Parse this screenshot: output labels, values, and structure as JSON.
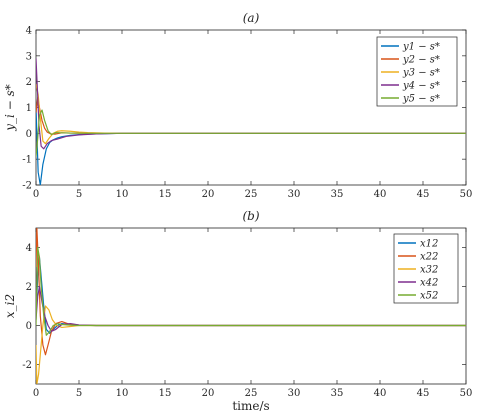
{
  "chart_data": [
    {
      "type": "line",
      "title": "(a)",
      "xlabel": "",
      "ylabel": "y_i − s*",
      "xlim": [
        0,
        50
      ],
      "ylim": [
        -2,
        4
      ],
      "xticks": [
        "0",
        "5",
        "10",
        "15",
        "20",
        "25",
        "30",
        "35",
        "40",
        "45",
        "50"
      ],
      "yticks": [
        "-2",
        "-1",
        "0",
        "1",
        "2",
        "3",
        "4"
      ],
      "grid": false,
      "legend_position": "top-right",
      "series": [
        {
          "name": "y1 − s*",
          "color": "#0072BD",
          "x": [
            0,
            0.25,
            0.5,
            0.8,
            1.2,
            1.6,
            2,
            2.5,
            3,
            4,
            5,
            6,
            8,
            10,
            50
          ],
          "y": [
            1.0,
            -1.5,
            -2.0,
            -1.2,
            -0.6,
            -0.35,
            -0.25,
            -0.18,
            -0.13,
            -0.08,
            -0.05,
            -0.03,
            -0.01,
            0,
            0
          ]
        },
        {
          "name": "y2 − s*",
          "color": "#D95319",
          "x": [
            0,
            0.2,
            0.4,
            0.7,
            1,
            1.3,
            1.7,
            2.2,
            3,
            4,
            5,
            7,
            10,
            50
          ],
          "y": [
            0.8,
            1.4,
            1.0,
            0.5,
            0.2,
            0.05,
            -0.02,
            -0.03,
            0.02,
            0.01,
            0.005,
            0,
            0,
            0
          ]
        },
        {
          "name": "y3 − s*",
          "color": "#EDB120",
          "x": [
            0,
            0.25,
            0.5,
            0.8,
            1.1,
            1.5,
            2,
            2.5,
            3,
            4,
            5,
            6,
            8,
            10,
            50
          ],
          "y": [
            1.9,
            1.5,
            0.6,
            -0.3,
            -0.4,
            -0.2,
            0.0,
            0.08,
            0.1,
            0.08,
            0.05,
            0.03,
            0.01,
            0,
            0
          ]
        },
        {
          "name": "y4 − s*",
          "color": "#7E2F8E",
          "x": [
            0,
            0.15,
            0.35,
            0.6,
            0.9,
            1.3,
            1.8,
            2.5,
            3.5,
            5,
            7,
            10,
            50
          ],
          "y": [
            2.9,
            1.8,
            0.3,
            -0.5,
            -0.6,
            -0.4,
            -0.28,
            -0.22,
            -0.12,
            -0.06,
            -0.02,
            0,
            0
          ]
        },
        {
          "name": "y5 − s*",
          "color": "#77AC30",
          "x": [
            0,
            0.2,
            0.4,
            0.7,
            1.0,
            1.4,
            1.8,
            2.3,
            3,
            4,
            5,
            7,
            10,
            50
          ],
          "y": [
            -0.9,
            -0.2,
            0.7,
            0.9,
            0.5,
            0.1,
            -0.05,
            0.03,
            0.02,
            0.01,
            0.005,
            0,
            0,
            0
          ]
        }
      ]
    },
    {
      "type": "line",
      "title": "(b)",
      "xlabel": "time/s",
      "ylabel": "x_i2",
      "xlim": [
        0,
        50
      ],
      "ylim": [
        -3,
        5
      ],
      "xticks": [
        "0",
        "5",
        "10",
        "15",
        "20",
        "25",
        "30",
        "35",
        "40",
        "45",
        "50"
      ],
      "yticks": [
        "-2",
        "0",
        "2",
        "4"
      ],
      "grid": false,
      "legend_position": "top-right",
      "series": [
        {
          "name": "x12",
          "color": "#0072BD",
          "x": [
            0,
            0.2,
            0.4,
            0.6,
            0.9,
            1.2,
            1.6,
            2.0,
            2.5,
            3,
            4,
            5,
            7,
            10,
            50
          ],
          "y": [
            0.5,
            2.5,
            3.5,
            2.5,
            1.0,
            -0.2,
            -0.4,
            -0.2,
            0.0,
            0.1,
            0.05,
            0.02,
            0,
            0,
            0
          ]
        },
        {
          "name": "x22",
          "color": "#D95319",
          "x": [
            0,
            0.1,
            0.3,
            0.5,
            0.8,
            1.1,
            1.4,
            1.8,
            2.3,
            3,
            4,
            5,
            7,
            10,
            50
          ],
          "y": [
            3.0,
            5.0,
            3.0,
            0.5,
            -1.0,
            -1.5,
            -1.0,
            -0.3,
            0.1,
            0.2,
            0.05,
            0.02,
            0,
            0,
            0
          ]
        },
        {
          "name": "x32",
          "color": "#EDB120",
          "x": [
            0,
            0.1,
            0.3,
            0.5,
            0.8,
            1.1,
            1.5,
            1.9,
            2.4,
            3,
            4,
            5,
            7,
            10,
            50
          ],
          "y": [
            -1.0,
            -3.0,
            -2.5,
            -1.5,
            0.0,
            1.0,
            0.8,
            0.3,
            0.0,
            -0.1,
            -0.05,
            0.0,
            0,
            0,
            0
          ]
        },
        {
          "name": "x42",
          "color": "#7E2F8E",
          "x": [
            0,
            0.2,
            0.4,
            0.7,
            1.0,
            1.4,
            1.8,
            2.3,
            3,
            4,
            5,
            7,
            10,
            50
          ],
          "y": [
            0.3,
            1.5,
            2.0,
            1.2,
            0.5,
            0.0,
            -0.3,
            -0.2,
            0.05,
            0.1,
            0.03,
            0.0,
            0,
            0
          ]
        },
        {
          "name": "x52",
          "color": "#77AC30",
          "x": [
            0,
            0.2,
            0.4,
            0.6,
            0.9,
            1.2,
            1.6,
            2.0,
            2.5,
            3,
            4,
            5,
            7,
            10,
            50
          ],
          "y": [
            0.0,
            4.0,
            3.5,
            2.0,
            0.5,
            -0.5,
            -0.3,
            0.0,
            0.1,
            0.05,
            0.02,
            0.0,
            0,
            0,
            0
          ]
        }
      ]
    }
  ]
}
